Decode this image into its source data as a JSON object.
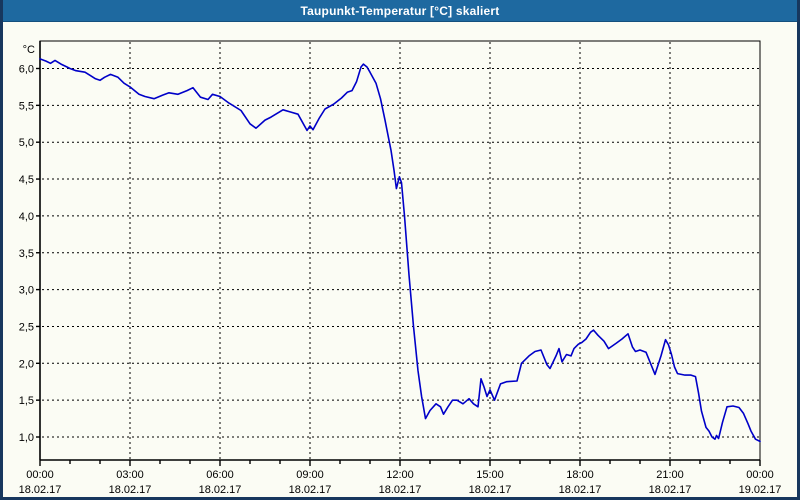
{
  "window": {
    "title": "Taupunkt-Temperatur [°C] skaliert"
  },
  "colors": {
    "titlebar": "#1E69A0",
    "titlebar_edge": "#14507E",
    "title_text": "#FFFFFF",
    "window_border": "#17375E",
    "background": "#FBFCF4",
    "plot_background": "#FBFCF4",
    "grid": "#000000",
    "axis": "#000000",
    "text": "#000000",
    "line": "#0000C8"
  },
  "chart_data": {
    "type": "line",
    "title": "Taupunkt-Temperatur [°C] skaliert",
    "ylabel": "°C",
    "xlabel": "",
    "ylim": [
      0.69,
      6.37
    ],
    "xlim_hours": [
      0,
      24
    ],
    "grid": "dashed horizontal at 0.5°C steps, dashed vertical at 3h steps",
    "legend": "none",
    "y_ticks": [
      {
        "value": 6.0,
        "label": "6,0"
      },
      {
        "value": 5.5,
        "label": "5,5"
      },
      {
        "value": 5.0,
        "label": "5,0"
      },
      {
        "value": 4.5,
        "label": "4,5"
      },
      {
        "value": 4.0,
        "label": "4,0"
      },
      {
        "value": 3.5,
        "label": "3,5"
      },
      {
        "value": 3.0,
        "label": "3,0"
      },
      {
        "value": 2.5,
        "label": "2,5"
      },
      {
        "value": 2.0,
        "label": "2,0"
      },
      {
        "value": 1.5,
        "label": "1,5"
      },
      {
        "value": 1.0,
        "label": "1,0"
      }
    ],
    "x_ticks": [
      {
        "hour": 0,
        "time": "00:00",
        "date": "18.02.17"
      },
      {
        "hour": 3,
        "time": "03:00",
        "date": "18.02.17"
      },
      {
        "hour": 6,
        "time": "06:00",
        "date": "18.02.17"
      },
      {
        "hour": 9,
        "time": "09:00",
        "date": "18.02.17"
      },
      {
        "hour": 12,
        "time": "12:00",
        "date": "18.02.17"
      },
      {
        "hour": 15,
        "time": "15:00",
        "date": "18.02.17"
      },
      {
        "hour": 18,
        "time": "18:00",
        "date": "18.02.17"
      },
      {
        "hour": 21,
        "time": "21:00",
        "date": "18.02.17"
      },
      {
        "hour": 24,
        "time": "00:00",
        "date": "19.02.17"
      }
    ],
    "minor_x_tick_every_hours": 1,
    "series": [
      {
        "name": "Taupunkt-Temperatur",
        "color": "#0000C8",
        "points": [
          [
            0,
            6.13
          ],
          [
            0.2,
            6.1
          ],
          [
            0.35,
            6.07
          ],
          [
            0.5,
            6.11
          ],
          [
            0.7,
            6.06
          ],
          [
            0.9,
            6.02
          ],
          [
            1,
            6
          ],
          [
            1.2,
            5.97
          ],
          [
            1.5,
            5.95
          ],
          [
            1.7,
            5.9
          ],
          [
            1.85,
            5.86
          ],
          [
            2,
            5.84
          ],
          [
            2.15,
            5.88
          ],
          [
            2.35,
            5.92
          ],
          [
            2.6,
            5.88
          ],
          [
            2.8,
            5.8
          ],
          [
            3,
            5.75
          ],
          [
            3.3,
            5.65
          ],
          [
            3.5,
            5.62
          ],
          [
            3.8,
            5.59
          ],
          [
            4.1,
            5.64
          ],
          [
            4.3,
            5.67
          ],
          [
            4.6,
            5.65
          ],
          [
            4.9,
            5.7
          ],
          [
            5.1,
            5.74
          ],
          [
            5.35,
            5.61
          ],
          [
            5.6,
            5.58
          ],
          [
            5.75,
            5.65
          ],
          [
            6,
            5.62
          ],
          [
            6.3,
            5.53
          ],
          [
            6.7,
            5.43
          ],
          [
            7,
            5.25
          ],
          [
            7.2,
            5.19
          ],
          [
            7.5,
            5.3
          ],
          [
            7.7,
            5.34
          ],
          [
            8.1,
            5.44
          ],
          [
            8.35,
            5.41
          ],
          [
            8.6,
            5.38
          ],
          [
            8.9,
            5.16
          ],
          [
            9,
            5.22
          ],
          [
            9.1,
            5.17
          ],
          [
            9.3,
            5.32
          ],
          [
            9.5,
            5.45
          ],
          [
            9.8,
            5.52
          ],
          [
            10.05,
            5.6
          ],
          [
            10.25,
            5.68
          ],
          [
            10.4,
            5.7
          ],
          [
            10.55,
            5.82
          ],
          [
            10.7,
            6.02
          ],
          [
            10.78,
            6.06
          ],
          [
            10.9,
            6.02
          ],
          [
            11,
            5.95
          ],
          [
            11.2,
            5.8
          ],
          [
            11.35,
            5.59
          ],
          [
            11.5,
            5.3
          ],
          [
            11.7,
            4.89
          ],
          [
            11.8,
            4.62
          ],
          [
            11.88,
            4.37
          ],
          [
            11.98,
            4.53
          ],
          [
            12.05,
            4.45
          ],
          [
            12.15,
            4
          ],
          [
            12.3,
            3.2
          ],
          [
            12.45,
            2.5
          ],
          [
            12.6,
            1.9
          ],
          [
            12.72,
            1.55
          ],
          [
            12.85,
            1.25
          ],
          [
            13,
            1.36
          ],
          [
            13.2,
            1.45
          ],
          [
            13.35,
            1.41
          ],
          [
            13.45,
            1.31
          ],
          [
            13.6,
            1.41
          ],
          [
            13.75,
            1.5
          ],
          [
            13.9,
            1.5
          ],
          [
            14.1,
            1.45
          ],
          [
            14.3,
            1.52
          ],
          [
            14.45,
            1.45
          ],
          [
            14.6,
            1.41
          ],
          [
            14.7,
            1.79
          ],
          [
            14.8,
            1.68
          ],
          [
            14.9,
            1.55
          ],
          [
            15,
            1.64
          ],
          [
            15.15,
            1.5
          ],
          [
            15.35,
            1.72
          ],
          [
            15.55,
            1.75
          ],
          [
            15.9,
            1.76
          ],
          [
            16.05,
            2
          ],
          [
            16.3,
            2.1
          ],
          [
            16.5,
            2.16
          ],
          [
            16.7,
            2.18
          ],
          [
            16.9,
            1.98
          ],
          [
            17,
            1.93
          ],
          [
            17.2,
            2.1
          ],
          [
            17.3,
            2.2
          ],
          [
            17.4,
            2.02
          ],
          [
            17.55,
            2.12
          ],
          [
            17.7,
            2.1
          ],
          [
            17.8,
            2.2
          ],
          [
            17.95,
            2.26
          ],
          [
            18.05,
            2.28
          ],
          [
            18.2,
            2.33
          ],
          [
            18.35,
            2.42
          ],
          [
            18.45,
            2.45
          ],
          [
            18.6,
            2.38
          ],
          [
            18.8,
            2.3
          ],
          [
            18.95,
            2.2
          ],
          [
            19.2,
            2.27
          ],
          [
            19.4,
            2.33
          ],
          [
            19.6,
            2.4
          ],
          [
            19.75,
            2.22
          ],
          [
            19.85,
            2.16
          ],
          [
            20,
            2.18
          ],
          [
            20.2,
            2.15
          ],
          [
            20.35,
            2
          ],
          [
            20.5,
            1.85
          ],
          [
            20.7,
            2.1
          ],
          [
            20.85,
            2.32
          ],
          [
            20.95,
            2.25
          ],
          [
            21.05,
            2.12
          ],
          [
            21.15,
            1.95
          ],
          [
            21.25,
            1.86
          ],
          [
            21.5,
            1.84
          ],
          [
            21.7,
            1.84
          ],
          [
            21.85,
            1.82
          ],
          [
            21.95,
            1.6
          ],
          [
            22.05,
            1.35
          ],
          [
            22.2,
            1.13
          ],
          [
            22.3,
            1.08
          ],
          [
            22.4,
            1
          ],
          [
            22.5,
            0.97
          ],
          [
            22.55,
            1.02
          ],
          [
            22.62,
            0.98
          ],
          [
            22.75,
            1.2
          ],
          [
            22.9,
            1.41
          ],
          [
            23.1,
            1.42
          ],
          [
            23.3,
            1.4
          ],
          [
            23.45,
            1.32
          ],
          [
            23.6,
            1.18
          ],
          [
            23.7,
            1.08
          ],
          [
            23.85,
            0.97
          ],
          [
            24,
            0.94
          ]
        ]
      }
    ]
  }
}
